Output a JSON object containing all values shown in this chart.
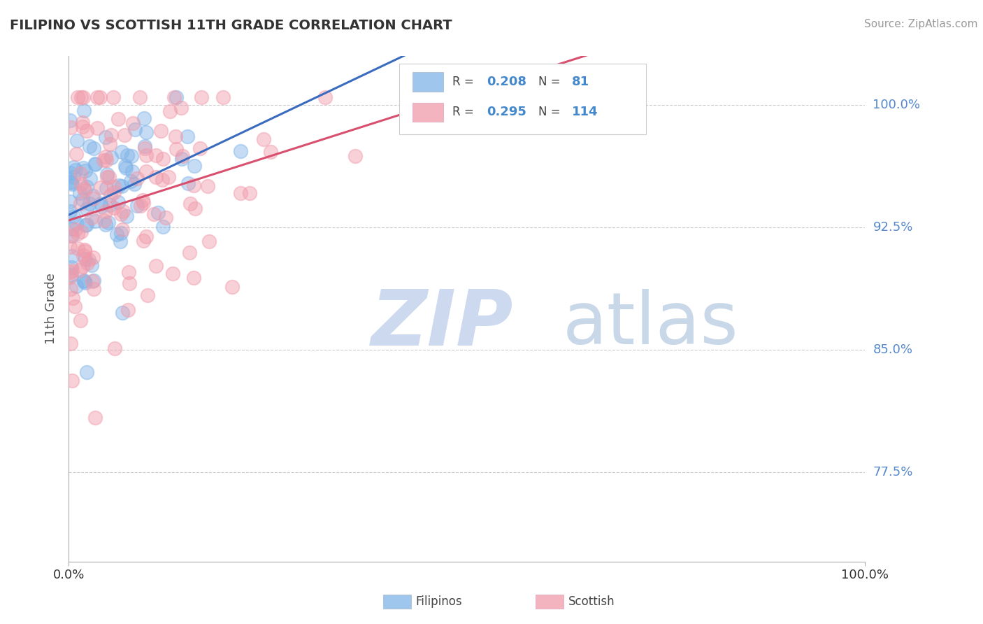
{
  "title": "FILIPINO VS SCOTTISH 11TH GRADE CORRELATION CHART",
  "source": "Source: ZipAtlas.com",
  "ylabel": "11th Grade",
  "y_tick_labels": [
    "100.0%",
    "92.5%",
    "85.0%",
    "77.5%"
  ],
  "y_tick_values": [
    1.0,
    0.925,
    0.85,
    0.775
  ],
  "x_range": [
    0.0,
    1.0
  ],
  "y_range": [
    0.72,
    1.03
  ],
  "filipino_R": 0.208,
  "filipino_N": 81,
  "scottish_R": 0.295,
  "scottish_N": 114,
  "filipino_color": "#7fb3e8",
  "scottish_color": "#f09aaa",
  "filipino_line_color": "#3a6bbf",
  "scottish_line_color": "#d94f6e",
  "background_color": "#ffffff",
  "watermark_ZIP_color": "#ccd9ee",
  "watermark_atlas_color": "#c8d8e8",
  "legend_labels": [
    "Filipinos",
    "Scottish"
  ],
  "legend_fil_color": "#7fb3e8",
  "legend_sco_color": "#f09aaa"
}
